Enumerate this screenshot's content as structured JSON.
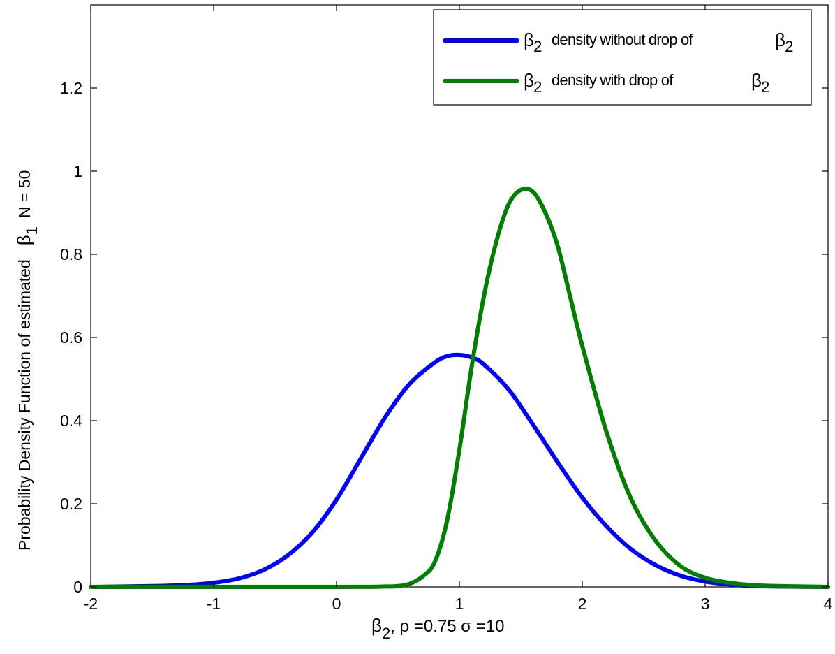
{
  "chart_data": {
    "type": "line",
    "xlim": [
      -2,
      4
    ],
    "ylim": [
      0,
      1.4
    ],
    "x_ticks": [
      -2,
      -1,
      0,
      1,
      2,
      3,
      4
    ],
    "x_tick_labels": [
      "-2",
      "-1",
      "0",
      "1",
      "2",
      "3",
      "4"
    ],
    "y_ticks": [
      0,
      0.2,
      0.4,
      0.6,
      0.8,
      1,
      1.2
    ],
    "y_tick_labels": [
      "0",
      "0.2",
      "0.4",
      "0.6",
      "0.8",
      "1",
      "1.2"
    ],
    "grid": false,
    "legend_position": "top-right",
    "xlabel": {
      "beta": "β",
      "beta_sub": "2",
      "text": ", ρ =0.75  σ =10"
    },
    "ylabel": {
      "text": "Probability Density Function of estimated",
      "beta": "β",
      "beta_sub": "1",
      "suffix": "N = 50"
    },
    "series": [
      {
        "legend": {
          "beta": "β",
          "sub": "2",
          "text": "density without drop of",
          "beta2": "β",
          "sub2": "2"
        },
        "color": "#0000ff",
        "x": [
          -2,
          -1.5,
          -1.2,
          -1,
          -0.8,
          -0.6,
          -0.4,
          -0.2,
          0,
          0.2,
          0.4,
          0.6,
          0.8,
          0.9,
          1,
          1.1,
          1.2,
          1.4,
          1.6,
          1.8,
          2,
          2.2,
          2.4,
          2.6,
          2.8,
          3,
          3.2,
          3.4,
          3.6,
          4
        ],
        "y": [
          0,
          0.002,
          0.005,
          0.01,
          0.02,
          0.04,
          0.075,
          0.13,
          0.21,
          0.31,
          0.41,
          0.49,
          0.54,
          0.555,
          0.558,
          0.552,
          0.535,
          0.475,
          0.39,
          0.3,
          0.215,
          0.145,
          0.09,
          0.052,
          0.027,
          0.013,
          0.006,
          0.002,
          0.001,
          0
        ]
      },
      {
        "legend": {
          "beta": "β",
          "sub": "2",
          "text": "density with drop of",
          "beta2": "β",
          "sub2": "2"
        },
        "color": "#007f00",
        "x": [
          -2,
          0,
          0.4,
          0.5,
          0.6,
          0.7,
          0.8,
          0.9,
          1,
          1.1,
          1.2,
          1.3,
          1.4,
          1.5,
          1.6,
          1.7,
          1.8,
          1.9,
          2,
          2.2,
          2.4,
          2.6,
          2.8,
          3,
          3.2,
          3.4,
          3.6,
          3.8,
          4
        ],
        "y": [
          0,
          0,
          0.001,
          0.002,
          0.008,
          0.025,
          0.06,
          0.16,
          0.33,
          0.53,
          0.7,
          0.83,
          0.92,
          0.955,
          0.95,
          0.9,
          0.82,
          0.7,
          0.58,
          0.37,
          0.21,
          0.11,
          0.05,
          0.022,
          0.01,
          0.004,
          0.002,
          0.001,
          0
        ]
      }
    ]
  }
}
